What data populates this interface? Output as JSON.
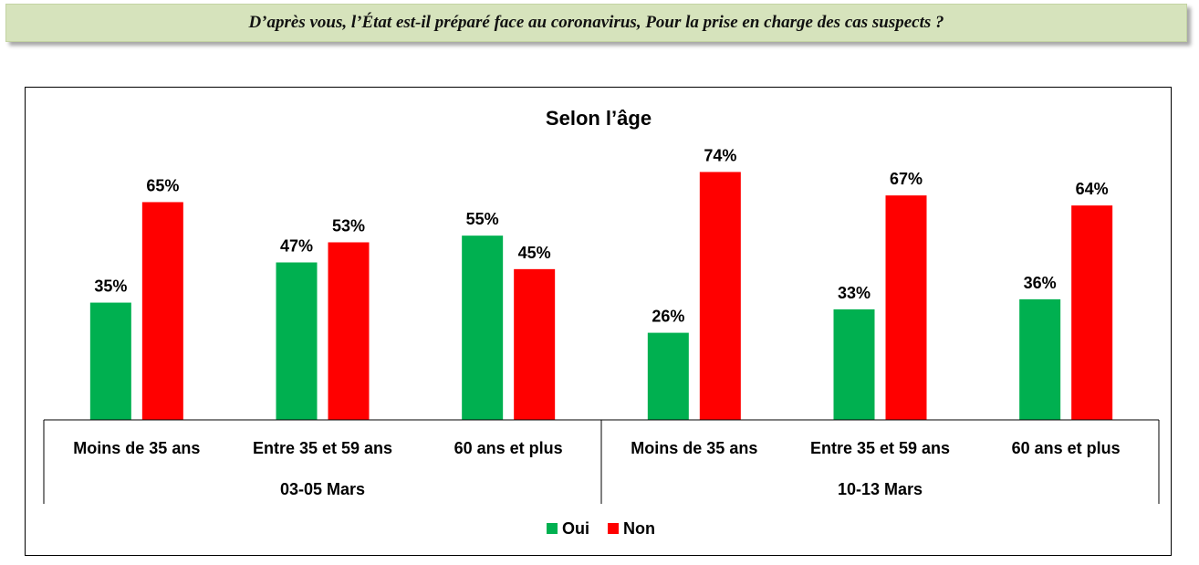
{
  "header": {
    "question": "D’après vous, l’État est-il préparé face au coronavirus, Pour la prise en charge des cas suspects ?"
  },
  "colors": {
    "oui": "#00b050",
    "non": "#ff0000",
    "banner": "#d6e3bc"
  },
  "chart_data": {
    "type": "bar",
    "title": "Selon l’âge",
    "groups": [
      {
        "label": "03-05 Mars",
        "categories": [
          "Moins de 35 ans",
          "Entre 35 et 59 ans",
          "60 ans et plus"
        ]
      },
      {
        "label": "10-13 Mars",
        "categories": [
          "Moins de 35 ans",
          "Entre 35 et 59 ans",
          "60 ans et plus"
        ]
      }
    ],
    "categories": [
      "Moins de 35 ans",
      "Entre 35 et 59 ans",
      "60 ans et plus",
      "Moins de 35 ans",
      "Entre 35 et 59 ans",
      "60 ans et plus"
    ],
    "series": [
      {
        "name": "Oui",
        "values": [
          35,
          47,
          55,
          26,
          33,
          36
        ],
        "labels": [
          "35%",
          "47%",
          "55%",
          "26%",
          "33%",
          "36%"
        ]
      },
      {
        "name": "Non",
        "values": [
          65,
          53,
          45,
          74,
          67,
          64
        ],
        "labels": [
          "65%",
          "53%",
          "45%",
          "74%",
          "67%",
          "64%"
        ]
      }
    ],
    "ylim": [
      0,
      100
    ],
    "unit": "%",
    "grid": false,
    "legend": "bottom"
  }
}
